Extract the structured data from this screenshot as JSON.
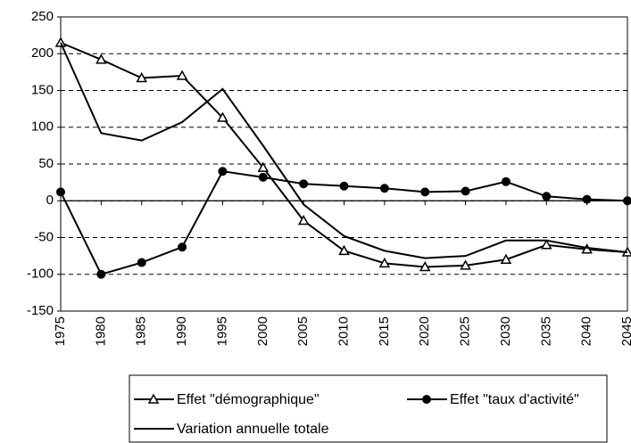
{
  "chart_data": {
    "type": "line",
    "categories": [
      "1975",
      "1980",
      "1985",
      "1990",
      "1995",
      "2000",
      "2005",
      "2010",
      "2015",
      "2020",
      "2025",
      "2030",
      "2035",
      "2040",
      "2045"
    ],
    "series": [
      {
        "name": "Effet \"démographique\"",
        "color": "#000000",
        "marker": "triangle",
        "values": [
          215,
          192,
          167,
          170,
          113,
          45,
          -27,
          -68,
          -85,
          -90,
          -88,
          -80,
          -60,
          -66,
          -70
        ]
      },
      {
        "name": "Effet \"taux d'activité\"",
        "color": "#000000",
        "marker": "circle",
        "values": [
          12,
          -100,
          -84,
          -63,
          40,
          32,
          23,
          20,
          17,
          12,
          13,
          26,
          6,
          2,
          0
        ]
      },
      {
        "name": "Variation annuelle totale",
        "color": "#000000",
        "marker": "none",
        "values": [
          215,
          92,
          82,
          107,
          152,
          75,
          -5,
          -48,
          -68,
          -78,
          -75,
          -54,
          -54,
          -64,
          -70
        ]
      }
    ],
    "ylim": [
      -150,
      250
    ],
    "yticks": [
      -150,
      -100,
      -50,
      0,
      50,
      100,
      150,
      200,
      250
    ],
    "grid": true
  }
}
